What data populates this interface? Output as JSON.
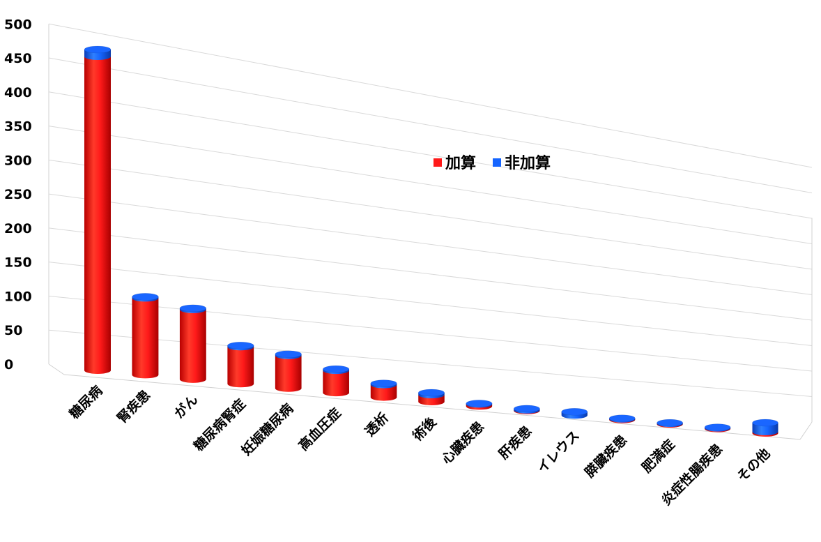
{
  "chart_data": {
    "type": "bar",
    "style": "3d-cylinder-stacked",
    "title": "",
    "xlabel": "",
    "ylabel": "",
    "ylim": [
      0,
      500
    ],
    "yticks": [
      "0",
      "50",
      "100",
      "150",
      "200",
      "250",
      "300",
      "350",
      "400",
      "450",
      "500"
    ],
    "categories": [
      "糖尿病",
      "腎疾患",
      "がん",
      "糖尿病腎症",
      "妊娠糖尿病",
      "高血圧症",
      "透析",
      "術後",
      "心臓疾患",
      "肝疾患",
      "イレウス",
      "膵臓疾患",
      "肥満症",
      "炎症性腸疾患",
      "その他"
    ],
    "series": [
      {
        "name": "加算",
        "color": "#ff1a1a",
        "values": [
          450,
          110,
          100,
          53,
          47,
          32,
          18,
          10,
          3,
          1,
          0,
          1,
          1,
          1,
          2
        ]
      },
      {
        "name": "非加算",
        "color": "#1565ff",
        "values": [
          10,
          2,
          2,
          2,
          2,
          2,
          2,
          3,
          1,
          2,
          5,
          1,
          1,
          1,
          13
        ]
      }
    ],
    "grid": true,
    "legend": "center-right"
  }
}
